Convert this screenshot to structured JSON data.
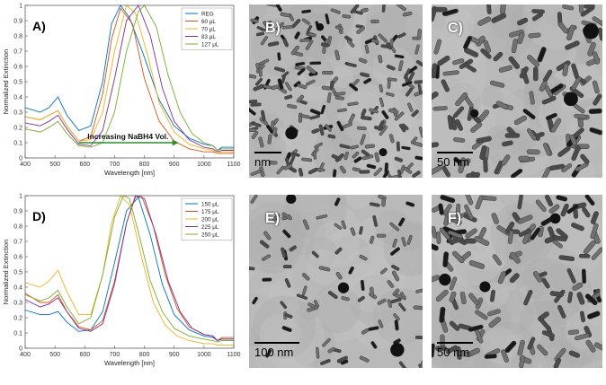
{
  "chart_data": [
    {
      "panel": "A)",
      "type": "line",
      "title": "",
      "xlabel": "Wavelength [nm]",
      "ylabel": "Normalized Extinction",
      "xlim": [
        400,
        1100
      ],
      "ylim": [
        0,
        1
      ],
      "xticks": [
        400,
        500,
        600,
        700,
        800,
        900,
        1000,
        1100
      ],
      "yticks": [
        0,
        0.1,
        0.2,
        0.3,
        0.4,
        0.5,
        0.6,
        0.7,
        0.8,
        0.9,
        1
      ],
      "legend_position": "top-right",
      "annotation": "Increasing NaBH4 Vol.",
      "series": [
        {
          "name": "REG",
          "color": "#0072BD",
          "x": [
            400,
            450,
            480,
            510,
            540,
            580,
            620,
            660,
            690,
            720,
            750,
            800,
            850,
            900,
            950,
            1000,
            1030,
            1045,
            1060,
            1100
          ],
          "y": [
            0.33,
            0.3,
            0.33,
            0.4,
            0.28,
            0.18,
            0.21,
            0.5,
            0.88,
            1.0,
            0.92,
            0.66,
            0.38,
            0.21,
            0.13,
            0.09,
            0.08,
            0.05,
            0.07,
            0.07
          ]
        },
        {
          "name": "60 μL",
          "color": "#D95319",
          "x": [
            400,
            450,
            480,
            510,
            540,
            580,
            620,
            660,
            690,
            720,
            760,
            800,
            850,
            900,
            950,
            1000,
            1030,
            1045,
            1060,
            1100
          ],
          "y": [
            0.27,
            0.25,
            0.28,
            0.31,
            0.21,
            0.11,
            0.14,
            0.42,
            0.78,
            0.98,
            0.88,
            0.52,
            0.24,
            0.11,
            0.06,
            0.04,
            0.04,
            0.03,
            0.03,
            0.03
          ]
        },
        {
          "name": "70 μL",
          "color": "#EDB120",
          "x": [
            400,
            450,
            480,
            510,
            540,
            580,
            620,
            660,
            700,
            740,
            770,
            810,
            850,
            900,
            950,
            1000,
            1030,
            1045,
            1060,
            1100
          ],
          "y": [
            0.27,
            0.25,
            0.28,
            0.31,
            0.21,
            0.11,
            0.12,
            0.3,
            0.7,
            1.0,
            0.95,
            0.68,
            0.36,
            0.17,
            0.09,
            0.06,
            0.05,
            0.03,
            0.04,
            0.04
          ]
        },
        {
          "name": "83 μL",
          "color": "#7E2F8E",
          "x": [
            400,
            450,
            480,
            510,
            540,
            580,
            620,
            660,
            700,
            740,
            780,
            820,
            860,
            900,
            950,
            1000,
            1030,
            1045,
            1060,
            1100
          ],
          "y": [
            0.23,
            0.21,
            0.24,
            0.28,
            0.19,
            0.09,
            0.08,
            0.18,
            0.52,
            0.9,
            1.0,
            0.8,
            0.46,
            0.24,
            0.12,
            0.07,
            0.06,
            0.04,
            0.05,
            0.05
          ]
        },
        {
          "name": "127 μL",
          "color": "#77AC30",
          "x": [
            400,
            450,
            480,
            510,
            540,
            580,
            620,
            660,
            700,
            740,
            780,
            800,
            840,
            880,
            920,
            960,
            1000,
            1030,
            1045,
            1060,
            1100
          ],
          "y": [
            0.19,
            0.17,
            0.2,
            0.24,
            0.16,
            0.08,
            0.07,
            0.1,
            0.3,
            0.7,
            0.96,
            1.0,
            0.86,
            0.54,
            0.3,
            0.16,
            0.1,
            0.08,
            0.05,
            0.06,
            0.06
          ]
        }
      ]
    },
    {
      "panel": "D)",
      "type": "line",
      "title": "",
      "xlabel": "Wavelength [nm]",
      "ylabel": "Normalized Extinction",
      "xlim": [
        400,
        1100
      ],
      "ylim": [
        0,
        1
      ],
      "xticks": [
        400,
        500,
        600,
        700,
        800,
        900,
        1000,
        1100
      ],
      "yticks": [
        0,
        0.1,
        0.2,
        0.3,
        0.4,
        0.5,
        0.6,
        0.7,
        0.8,
        0.9,
        1
      ],
      "legend_position": "top-right",
      "series": [
        {
          "name": "150 μL",
          "color": "#0072BD",
          "x": [
            400,
            450,
            480,
            510,
            540,
            580,
            620,
            660,
            700,
            740,
            780,
            820,
            860,
            900,
            950,
            1000,
            1030,
            1045,
            1060,
            1100
          ],
          "y": [
            0.25,
            0.22,
            0.22,
            0.24,
            0.17,
            0.11,
            0.12,
            0.24,
            0.56,
            0.9,
            0.99,
            0.74,
            0.42,
            0.22,
            0.12,
            0.08,
            0.07,
            0.05,
            0.06,
            0.06
          ]
        },
        {
          "name": "175 μL",
          "color": "#D95319",
          "x": [
            400,
            450,
            480,
            510,
            540,
            580,
            620,
            660,
            700,
            740,
            770,
            790,
            830,
            870,
            910,
            950,
            1000,
            1030,
            1045,
            1060,
            1100
          ],
          "y": [
            0.36,
            0.3,
            0.3,
            0.35,
            0.24,
            0.14,
            0.12,
            0.18,
            0.44,
            0.82,
            0.99,
            1.0,
            0.8,
            0.48,
            0.26,
            0.14,
            0.09,
            0.08,
            0.05,
            0.07,
            0.07
          ]
        },
        {
          "name": "200 μL",
          "color": "#EDB120",
          "x": [
            400,
            450,
            480,
            510,
            540,
            580,
            620,
            660,
            690,
            720,
            750,
            790,
            830,
            870,
            910,
            950,
            1000,
            1030,
            1045,
            1060,
            1100
          ],
          "y": [
            0.43,
            0.4,
            0.44,
            0.51,
            0.37,
            0.22,
            0.22,
            0.48,
            0.82,
            1.0,
            0.94,
            0.6,
            0.3,
            0.15,
            0.08,
            0.05,
            0.03,
            0.03,
            0.02,
            0.02,
            0.02
          ]
        },
        {
          "name": "225 μL",
          "color": "#7E2F8E",
          "x": [
            400,
            450,
            480,
            510,
            540,
            580,
            620,
            660,
            700,
            740,
            770,
            800,
            840,
            880,
            920,
            960,
            1000,
            1030,
            1045,
            1060,
            1100
          ],
          "y": [
            0.32,
            0.27,
            0.29,
            0.33,
            0.24,
            0.13,
            0.11,
            0.16,
            0.42,
            0.82,
            1.0,
            0.98,
            0.74,
            0.44,
            0.24,
            0.13,
            0.09,
            0.08,
            0.05,
            0.06,
            0.06
          ]
        },
        {
          "name": "250 μL",
          "color": "#77AC30",
          "x": [
            400,
            450,
            480,
            510,
            540,
            580,
            620,
            660,
            700,
            730,
            750,
            780,
            820,
            860,
            900,
            950,
            1000,
            1030,
            1045,
            1060,
            1100
          ],
          "y": [
            0.35,
            0.31,
            0.33,
            0.38,
            0.27,
            0.16,
            0.2,
            0.48,
            0.86,
            1.0,
            0.98,
            0.76,
            0.44,
            0.24,
            0.13,
            0.08,
            0.06,
            0.05,
            0.04,
            0.05,
            0.05
          ]
        }
      ]
    }
  ],
  "tem_images": [
    {
      "panel": "B)",
      "scale_text": "nm",
      "density": 0.9,
      "rod_scale": 0.7
    },
    {
      "panel": "C)",
      "scale_text": "50 nm",
      "density": 0.55,
      "rod_scale": 1.0
    },
    {
      "panel": "E)",
      "scale_text": "100 nm",
      "density": 0.35,
      "rod_scale": 0.7
    },
    {
      "panel": "F)",
      "scale_text": "50 nm",
      "density": 0.55,
      "rod_scale": 1.0
    }
  ]
}
